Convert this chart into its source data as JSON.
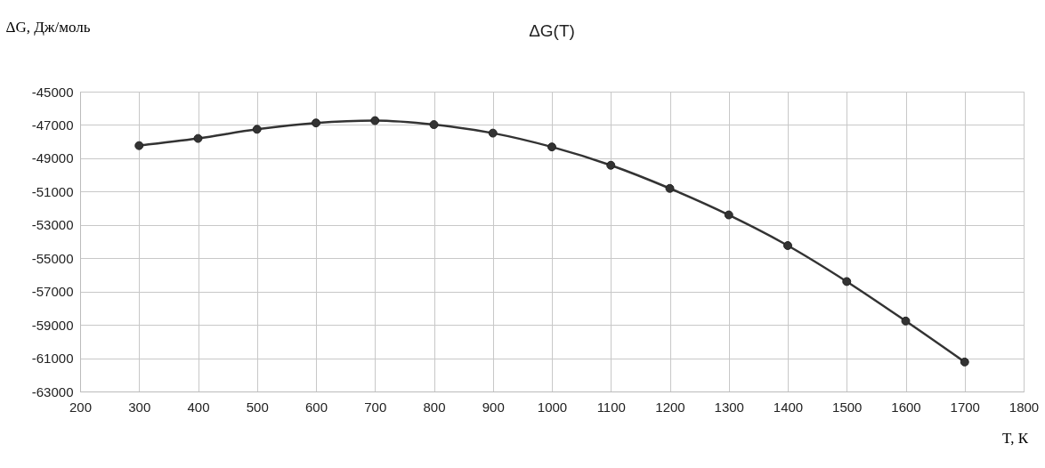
{
  "chart_data": {
    "type": "line",
    "title": "ΔG(T)",
    "ylabel": "ΔG, Дж/моль",
    "xlabel": "T, К",
    "x": [
      300,
      400,
      500,
      600,
      700,
      800,
      900,
      1000,
      1100,
      1200,
      1300,
      1400,
      1500,
      1600,
      1700
    ],
    "series": [
      {
        "color": "#333333",
        "values": [
          -48240,
          -47810,
          -47260,
          -46880,
          -46740,
          -46980,
          -47490,
          -48320,
          -49420,
          -50810,
          -52400,
          -54240,
          -56400,
          -58770,
          -61230
        ]
      }
    ],
    "xlim": [
      200,
      1800
    ],
    "xticks": [
      200,
      300,
      400,
      500,
      600,
      700,
      800,
      900,
      1000,
      1100,
      1200,
      1300,
      1400,
      1500,
      1600,
      1700,
      1800
    ],
    "ylim": [
      -63000,
      -45000
    ],
    "yticks": [
      -63000,
      -61000,
      -59000,
      -57000,
      -55000,
      -53000,
      -51000,
      -49000,
      -47000,
      -45000
    ],
    "grid": true,
    "marker": "circle",
    "line_style": "solid",
    "legend": false
  }
}
